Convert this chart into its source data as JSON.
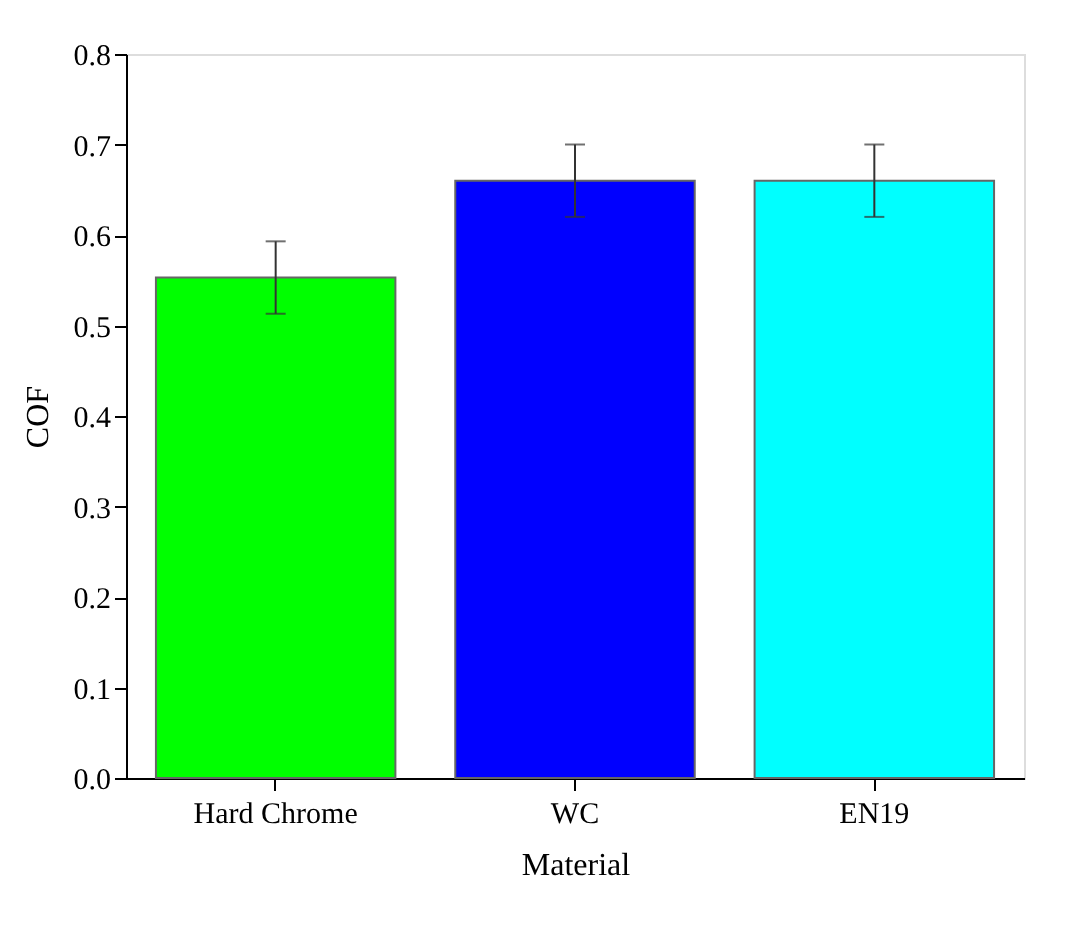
{
  "chart_data": {
    "type": "bar",
    "xlabel": "Material",
    "ylabel": "COF",
    "categories": [
      "Hard Chrome",
      "WC",
      "EN19"
    ],
    "values": [
      0.553,
      0.66,
      0.66
    ],
    "colors": [
      "#00ff00",
      "#0000ff",
      "#00ffff"
    ],
    "errors": [
      0.04,
      0.04,
      0.04
    ],
    "ylim": [
      0,
      0.8
    ],
    "yticks": [
      {
        "value": 0,
        "label": "0.0"
      },
      0.1,
      0.2,
      0.3,
      0.4,
      0.5,
      0.6,
      0.7,
      0.8
    ],
    "grid": false
  }
}
